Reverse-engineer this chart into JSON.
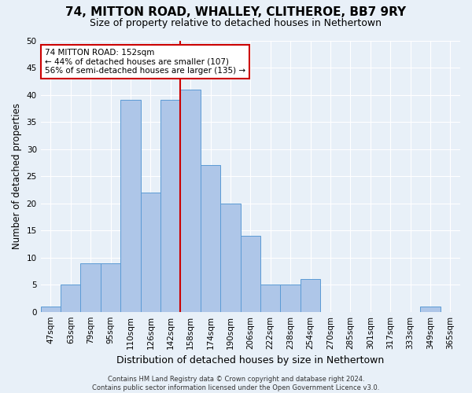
{
  "title1": "74, MITTON ROAD, WHALLEY, CLITHEROE, BB7 9RY",
  "title2": "Size of property relative to detached houses in Nethertown",
  "xlabel": "Distribution of detached houses by size in Nethertown",
  "ylabel": "Number of detached properties",
  "categories": [
    "47sqm",
    "63sqm",
    "79sqm",
    "95sqm",
    "110sqm",
    "126sqm",
    "142sqm",
    "158sqm",
    "174sqm",
    "190sqm",
    "206sqm",
    "222sqm",
    "238sqm",
    "254sqm",
    "270sqm",
    "285sqm",
    "301sqm",
    "317sqm",
    "333sqm",
    "349sqm",
    "365sqm"
  ],
  "values": [
    1,
    5,
    9,
    9,
    39,
    22,
    39,
    41,
    27,
    20,
    14,
    5,
    5,
    6,
    0,
    0,
    0,
    0,
    0,
    1,
    0
  ],
  "bar_color": "#aec6e8",
  "bar_edge_color": "#5b9bd5",
  "vline_index": 7,
  "vline_color": "#cc0000",
  "annotation_text": "74 MITTON ROAD: 152sqm\n← 44% of detached houses are smaller (107)\n56% of semi-detached houses are larger (135) →",
  "annotation_box_color": "#ffffff",
  "annotation_box_edge": "#cc0000",
  "ylim": [
    0,
    50
  ],
  "yticks": [
    0,
    5,
    10,
    15,
    20,
    25,
    30,
    35,
    40,
    45,
    50
  ],
  "bg_color": "#e8f0f8",
  "grid_color": "#ffffff",
  "footer1": "Contains HM Land Registry data © Crown copyright and database right 2024.",
  "footer2": "Contains public sector information licensed under the Open Government Licence v3.0.",
  "title1_fontsize": 11,
  "title2_fontsize": 9,
  "tick_fontsize": 7.5,
  "ylabel_fontsize": 8.5,
  "xlabel_fontsize": 9,
  "annotation_fontsize": 7.5,
  "footer_fontsize": 6
}
